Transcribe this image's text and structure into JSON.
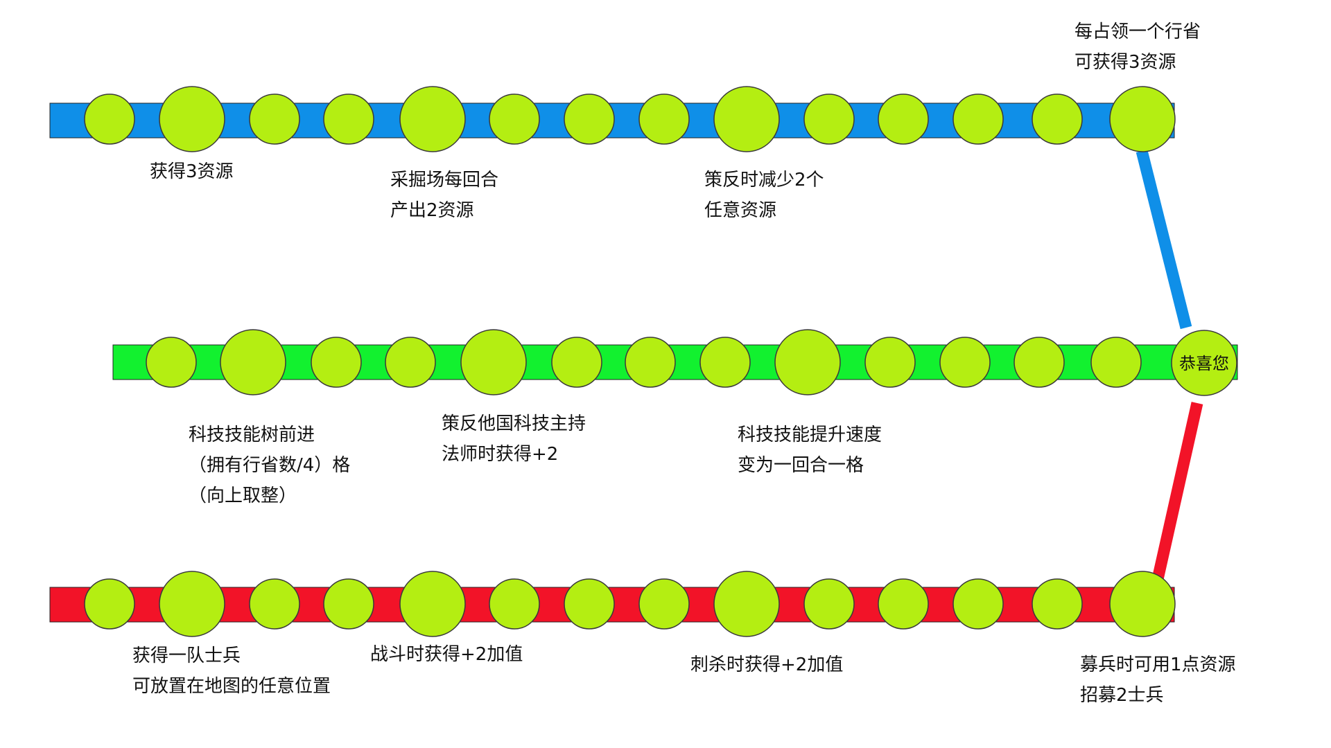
{
  "colors": {
    "blue_track": "#0f8fe8",
    "green_track": "#12f12f",
    "red_track": "#f21328",
    "node_fill": "#b4ee12",
    "node_stroke": "#3a3a3a",
    "text": "#111111",
    "background": "#ffffff"
  },
  "tracks": {
    "blue": {
      "labels": [
        {
          "lines": [
            "获得3资源"
          ]
        },
        {
          "lines": [
            "采掘场每回合",
            "产出2资源"
          ]
        },
        {
          "lines": [
            "策反时减少2个",
            "任意资源"
          ]
        },
        {
          "lines": [
            "每占领一个行省",
            "可获得3资源"
          ]
        }
      ]
    },
    "green": {
      "labels": [
        {
          "lines": [
            "科技技能树前进",
            "（拥有行省数/4）格",
            "（向上取整）"
          ]
        },
        {
          "lines": [
            "策反他国科技主持",
            "法师时获得+2"
          ]
        },
        {
          "lines": [
            "科技技能提升速度",
            "变为一回合一格"
          ]
        }
      ]
    },
    "red": {
      "labels": [
        {
          "lines": [
            "获得一队士兵",
            "可放置在地图的任意位置"
          ]
        },
        {
          "lines": [
            "战斗时获得+2加值"
          ]
        },
        {
          "lines": [
            "刺杀时获得+2加值"
          ]
        },
        {
          "lines": [
            "募兵时可用1点资源",
            "招募2士兵"
          ]
        }
      ]
    }
  },
  "center_node": {
    "label": "恭喜您"
  }
}
